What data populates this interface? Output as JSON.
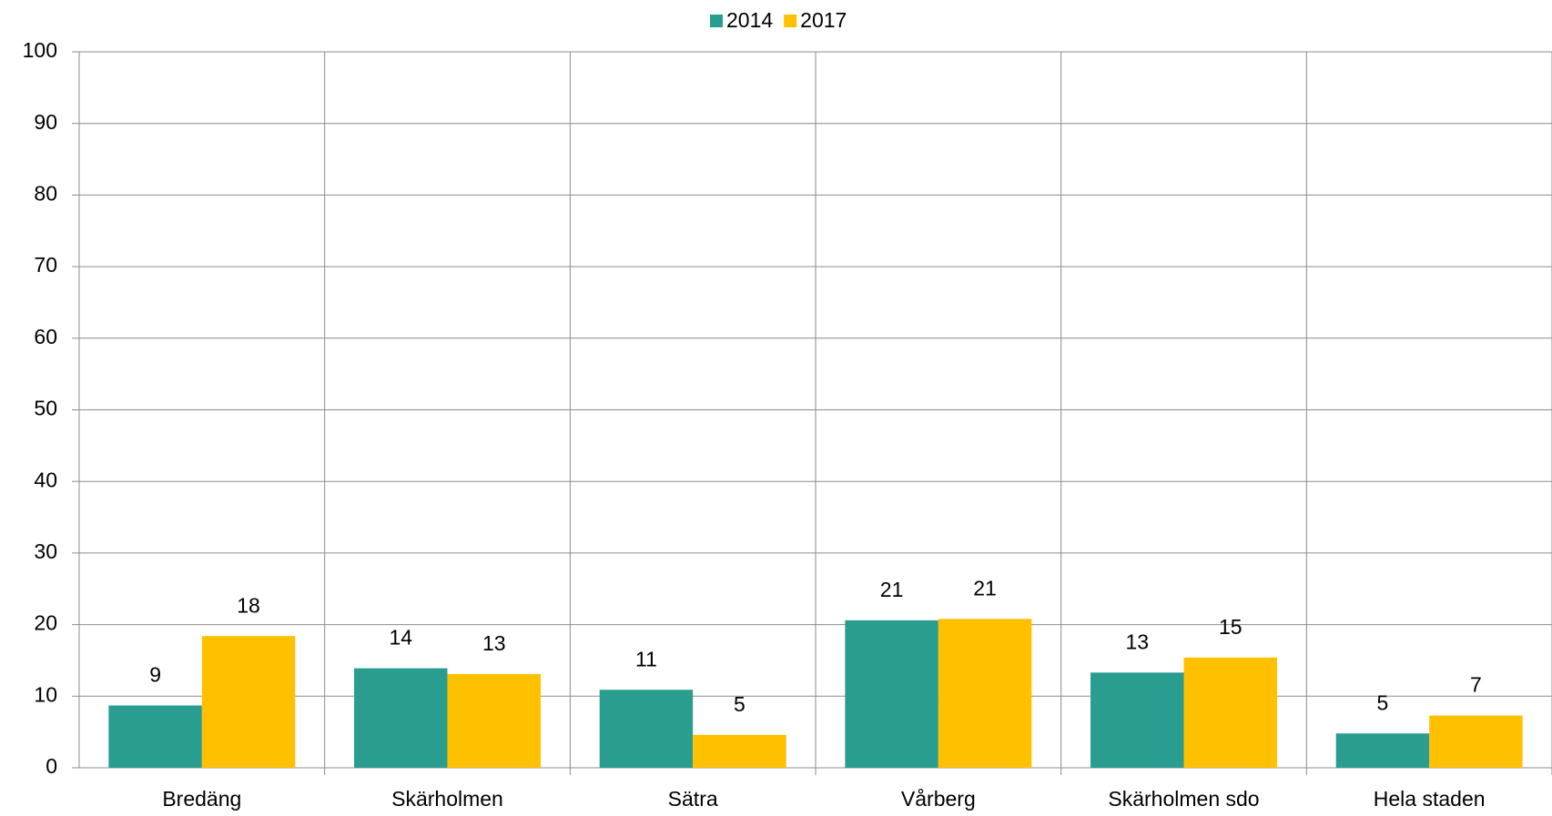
{
  "chart_data": {
    "type": "bar",
    "categories": [
      "Bredäng",
      "Skärholmen",
      "Sätra",
      "Vårberg",
      "Skärholmen sdo",
      "Hela staden"
    ],
    "series": [
      {
        "name": "2014",
        "color": "#2a9d91",
        "values": [
          8.7,
          13.9,
          10.9,
          20.6,
          13.3,
          4.8
        ],
        "value_labels": [
          "9",
          "14",
          "11",
          "21",
          "13",
          "5"
        ]
      },
      {
        "name": "2017",
        "color": "#ffc000",
        "values": [
          18.4,
          13.1,
          4.6,
          20.8,
          15.4,
          7.3
        ],
        "value_labels": [
          "18",
          "13",
          "5",
          "21",
          "15",
          "7"
        ]
      }
    ],
    "ylim": [
      0,
      100
    ],
    "yticks": [
      0,
      10,
      20,
      30,
      40,
      50,
      60,
      70,
      80,
      90,
      100
    ],
    "grid": true,
    "legend": "top"
  }
}
